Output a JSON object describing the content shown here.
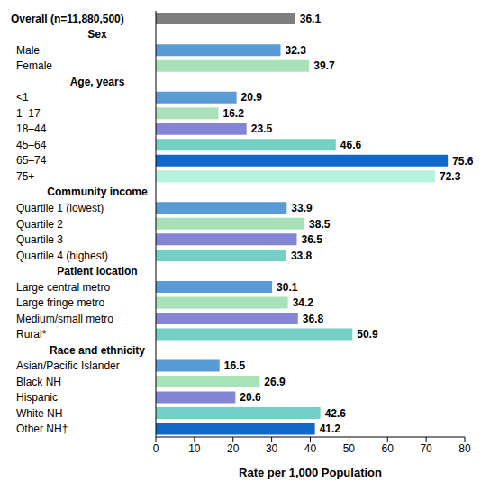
{
  "chart_data": {
    "type": "bar",
    "orientation": "horizontal",
    "data_labels": true,
    "grid": false,
    "x_label": "Rate per 1,000 Population",
    "xlim": [
      0,
      80
    ],
    "xticks": [
      0,
      10,
      20,
      30,
      40,
      50,
      60,
      70,
      80
    ],
    "categories": [
      "Overall (n=11,880,500)",
      "Sex",
      "Male",
      "Female",
      "Age, years",
      "<1",
      "1–17",
      "18–44",
      "45–64",
      "65–74",
      "75+",
      "Community income",
      "Quartile 1 (lowest)",
      "Quartile 2",
      "Quartile 3",
      "Quartile 4 (highest)",
      "Patient location",
      "Large central metro",
      "Large fringe metro",
      "Medium/small metro",
      "Rural*",
      "Race and ethnicity",
      "Asian/Pacific Islander",
      "Black NH",
      "Hispanic",
      "White NH",
      "Other NH†"
    ],
    "values": [
      36.1,
      null,
      32.3,
      39.7,
      null,
      20.9,
      16.2,
      23.5,
      46.6,
      75.6,
      72.3,
      null,
      33.9,
      38.5,
      36.5,
      33.8,
      null,
      30.1,
      34.2,
      36.8,
      50.9,
      null,
      16.5,
      26.9,
      20.6,
      42.6,
      41.2
    ],
    "colors": [
      "#7f7f7f",
      null,
      "#5b9bd5",
      "#a9e2b8",
      null,
      "#5b9bd5",
      "#a9e2b8",
      "#8585d6",
      "#74cfc6",
      "#1069c8",
      "#b6f0df",
      null,
      "#5b9bd5",
      "#a9e2b8",
      "#8585d6",
      "#74cfc6",
      null,
      "#5b9bd5",
      "#a9e2b8",
      "#8585d6",
      "#74cfc6",
      null,
      "#5b9bd5",
      "#a9e2b8",
      "#8585d6",
      "#74cfc6",
      "#1069c8"
    ]
  }
}
